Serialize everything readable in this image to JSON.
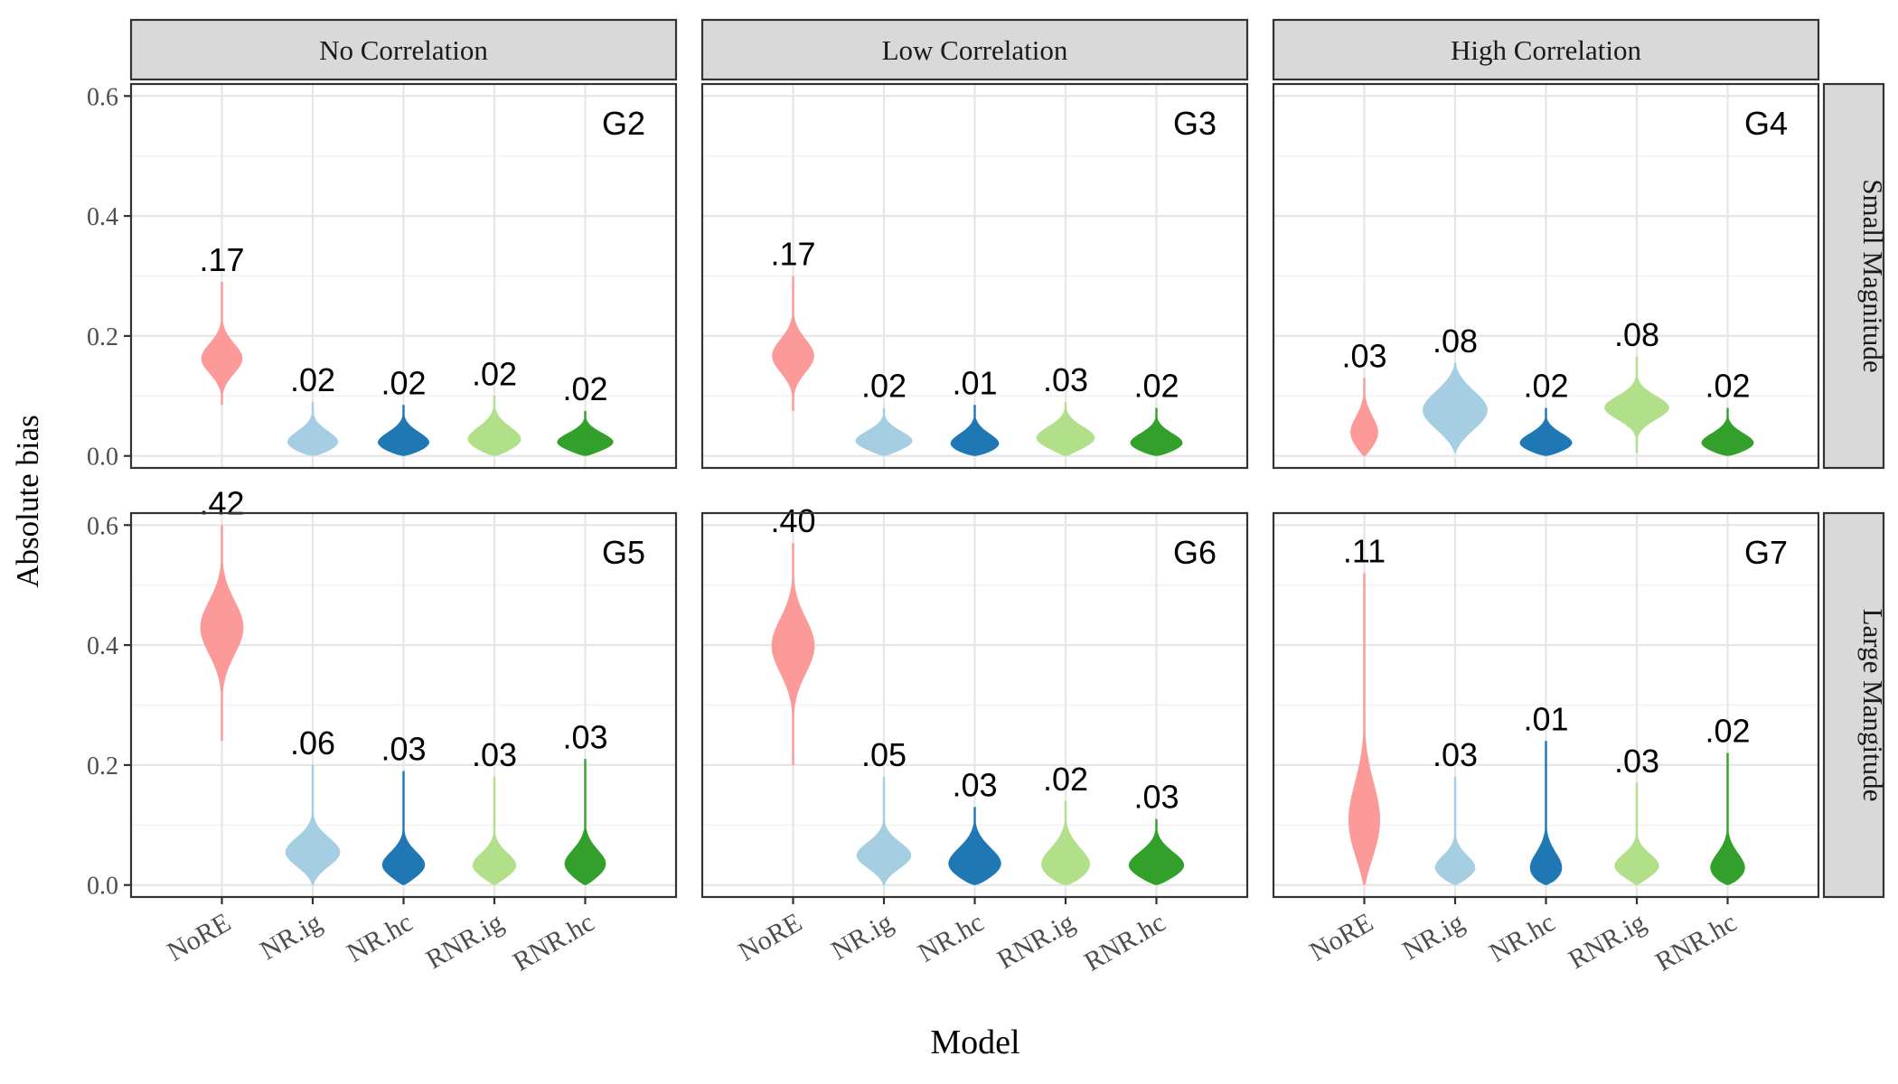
{
  "chart_data": {
    "type": "violin",
    "xlabel": "Model",
    "ylabel": "Absolute bias",
    "ylim": [
      -0.02,
      0.62
    ],
    "yticks": [
      0.0,
      0.2,
      0.4,
      0.6
    ],
    "ytick_labels": [
      "0.0",
      "0.2",
      "0.4",
      "0.6"
    ],
    "categories": [
      "NoRE",
      "NR.ig",
      "NR.hc",
      "RNR.ig",
      "RNR.hc"
    ],
    "colors": [
      "#fb9a99",
      "#a6cee3",
      "#1f78b4",
      "#b2df8a",
      "#33a02c"
    ],
    "columns": [
      "No Correlation",
      "Low Correlation",
      "High Correlation"
    ],
    "rows": [
      "Small Magnitude",
      "Large Mangitude"
    ],
    "panels": [
      {
        "row": 0,
        "col": 0,
        "tag": "G2",
        "labels": [
          ".17",
          ".02",
          ".02",
          ".02",
          ".02"
        ],
        "means": [
          0.17,
          0.02,
          0.02,
          0.02,
          0.02
        ],
        "min": [
          0.085,
          0.0,
          0.0,
          0.0,
          0.0
        ],
        "max": [
          0.29,
          0.09,
          0.085,
          0.1,
          0.075
        ],
        "mode": [
          0.16,
          0.015,
          0.015,
          0.02,
          0.018
        ]
      },
      {
        "row": 0,
        "col": 1,
        "tag": "G3",
        "labels": [
          ".17",
          ".02",
          ".01",
          ".03",
          ".02"
        ],
        "means": [
          0.17,
          0.02,
          0.01,
          0.03,
          0.02
        ],
        "min": [
          0.075,
          0.0,
          0.0,
          0.0,
          0.0
        ],
        "max": [
          0.3,
          0.08,
          0.085,
          0.09,
          0.08
        ],
        "mode": [
          0.165,
          0.02,
          0.012,
          0.025,
          0.015
        ]
      },
      {
        "row": 0,
        "col": 2,
        "tag": "G4",
        "labels": [
          ".03",
          ".08",
          ".02",
          ".08",
          ".02"
        ],
        "means": [
          0.03,
          0.08,
          0.02,
          0.08,
          0.02
        ],
        "min": [
          0.0,
          0.005,
          0.0,
          0.005,
          0.0
        ],
        "max": [
          0.13,
          0.155,
          0.08,
          0.165,
          0.08
        ],
        "mode": [
          0.03,
          0.075,
          0.015,
          0.08,
          0.015
        ]
      },
      {
        "row": 1,
        "col": 0,
        "tag": "G5",
        "labels": [
          ".42",
          ".06",
          ".03",
          ".03",
          ".03"
        ],
        "means": [
          0.42,
          0.06,
          0.03,
          0.03,
          0.03
        ],
        "min": [
          0.24,
          0.0,
          0.0,
          0.0,
          0.0
        ],
        "max": [
          0.6,
          0.2,
          0.19,
          0.18,
          0.21
        ],
        "mode": [
          0.43,
          0.05,
          0.025,
          0.025,
          0.025
        ]
      },
      {
        "row": 1,
        "col": 1,
        "tag": "G6",
        "labels": [
          ".40",
          ".05",
          ".03",
          ".02",
          ".03"
        ],
        "means": [
          0.4,
          0.05,
          0.03,
          0.02,
          0.03
        ],
        "min": [
          0.2,
          0.0,
          0.0,
          0.0,
          0.0
        ],
        "max": [
          0.57,
          0.18,
          0.13,
          0.14,
          0.11
        ],
        "mode": [
          0.4,
          0.045,
          0.025,
          0.02,
          0.025
        ]
      },
      {
        "row": 1,
        "col": 2,
        "tag": "G7",
        "labels": [
          ".11",
          ".03",
          ".01",
          ".03",
          ".02"
        ],
        "means": [
          0.11,
          0.03,
          0.01,
          0.03,
          0.02
        ],
        "min": [
          0.0,
          0.0,
          0.0,
          0.0,
          0.0
        ],
        "max": [
          0.52,
          0.18,
          0.24,
          0.17,
          0.22
        ],
        "mode": [
          0.09,
          0.02,
          0.01,
          0.025,
          0.015
        ]
      }
    ]
  }
}
